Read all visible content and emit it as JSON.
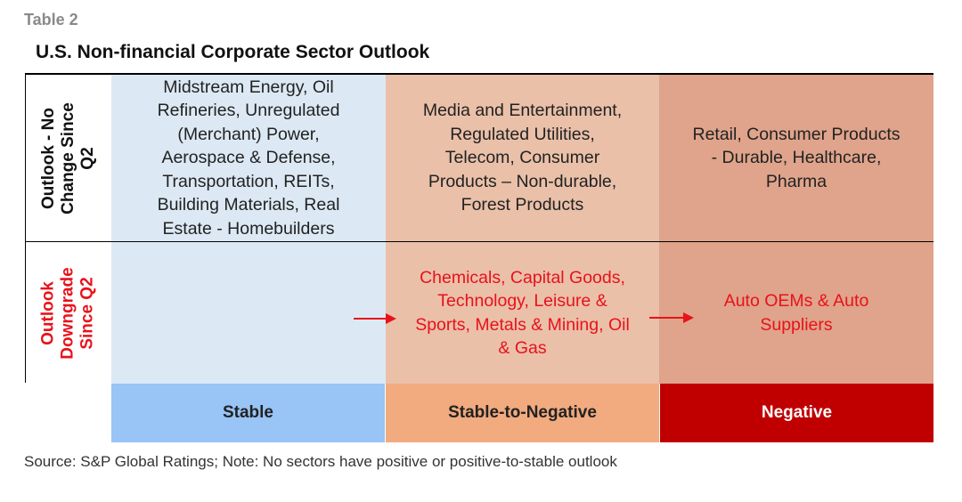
{
  "table_label": "Table 2",
  "title": "U.S. Non-financial Corporate Sector Outlook",
  "rows": [
    {
      "label": [
        "Outlook - No",
        "Change Since",
        "Q2"
      ],
      "cells": [
        [
          "Midstream Energy, Oil",
          "Refineries, Unregulated",
          "(Merchant) Power,",
          "Aerospace & Defense,",
          "Transportation, REITs,",
          "Building Materials, Real",
          "Estate - Homebuilders"
        ],
        [
          "Media and Entertainment,",
          "Regulated Utilities,",
          "Telecom, Consumer",
          "Products – Non-durable,",
          "Forest Products"
        ],
        [
          "Retail, Consumer Products",
          "- Durable, Healthcare,",
          "Pharma"
        ]
      ]
    },
    {
      "label": [
        "Outlook",
        "Downgrade",
        "Since Q2"
      ],
      "cells": [
        [],
        [
          "Chemicals, Capital Goods,",
          "Technology, Leisure &",
          "Sports, Metals & Mining, Oil",
          "& Gas"
        ],
        [
          "Auto OEMs & Auto",
          "Suppliers"
        ]
      ]
    }
  ],
  "legend": [
    "Stable",
    "Stable-to-Negative",
    "Negative"
  ],
  "source": "Source: S&P Global Ratings; Note: No sectors have positive or positive-to-stable outlook",
  "colors": {
    "stable_cell": "#dce9f4",
    "stable_to_negative_cell": "#eac0a9",
    "negative_cell": "#dfa48b",
    "stable_legend": "#98c4f6",
    "stable_to_negative_legend": "#f2aa7f",
    "negative_legend": "#c00000",
    "downgrade_text": "#e8121b"
  },
  "icons": [
    "right-arrow-icon",
    "right-arrow-icon"
  ]
}
